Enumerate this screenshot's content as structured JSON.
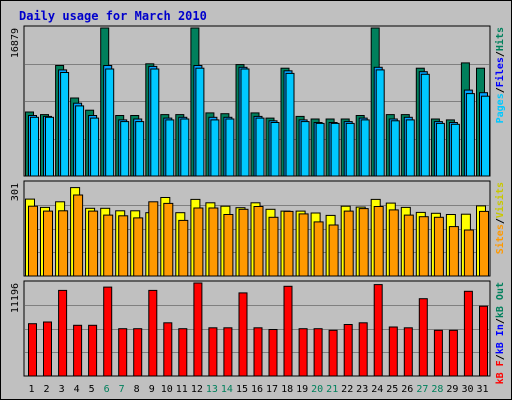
{
  "chart_data": [
    {
      "type": "bar",
      "title": "Daily usage for March 2010",
      "categories": [
        "1",
        "2",
        "3",
        "4",
        "5",
        "6",
        "7",
        "8",
        "9",
        "10",
        "11",
        "12",
        "13",
        "14",
        "15",
        "16",
        "17",
        "18",
        "19",
        "20",
        "21",
        "22",
        "23",
        "24",
        "25",
        "26",
        "27",
        "28",
        "29",
        "30",
        "31"
      ],
      "weekend_days": [
        6,
        7,
        13,
        14,
        20,
        21,
        27,
        28
      ],
      "ymax_label": "16879",
      "ylim": [
        0,
        16879
      ],
      "series": [
        {
          "name": "Hits",
          "color": "#00805c",
          "values": [
            7300,
            7000,
            12600,
            8900,
            7500,
            16879,
            6900,
            6900,
            12800,
            7000,
            7000,
            16879,
            7200,
            7100,
            12700,
            7200,
            6600,
            12300,
            6800,
            6500,
            6500,
            6500,
            6900,
            16879,
            7000,
            7000,
            12300,
            6500,
            6400,
            12900,
            12300
          ]
        },
        {
          "name": "Files",
          "color": "#00a2ff",
          "values": [
            6900,
            6800,
            12100,
            8300,
            6900,
            12600,
            6400,
            6500,
            12500,
            6600,
            6700,
            12600,
            6700,
            6700,
            12400,
            6800,
            6300,
            12000,
            6400,
            6100,
            6100,
            6200,
            6600,
            12400,
            6500,
            6700,
            11900,
            6200,
            6100,
            9800,
            9500
          ]
        },
        {
          "name": "Pages",
          "color": "#00c8ff",
          "values": [
            6700,
            6700,
            11800,
            8000,
            6600,
            12200,
            6200,
            6200,
            12200,
            6400,
            6500,
            12300,
            6400,
            6500,
            12200,
            6600,
            6100,
            11700,
            6200,
            6000,
            6000,
            6000,
            6400,
            12100,
            6300,
            6400,
            11600,
            6000,
            5900,
            9400,
            9100
          ]
        }
      ]
    },
    {
      "type": "bar",
      "ymax_label": "301",
      "ylim": [
        0,
        301
      ],
      "series": [
        {
          "name": "Visits",
          "color": "#ffff00",
          "values": [
            249,
            222,
            240,
            286,
            219,
            219,
            211,
            211,
            205,
            254,
            205,
            248,
            237,
            226,
            221,
            237,
            216,
            210,
            210,
            204,
            196,
            226,
            223,
            248,
            236,
            222,
            206,
            203,
            199,
            200,
            227
          ]
        },
        {
          "name": "Sites",
          "color": "#ff9900",
          "values": [
            226,
            210,
            211,
            262,
            210,
            197,
            195,
            188,
            240,
            235,
            180,
            220,
            220,
            199,
            216,
            225,
            190,
            209,
            201,
            175,
            165,
            210,
            218,
            225,
            214,
            197,
            192,
            190,
            160,
            149,
            209
          ]
        }
      ]
    },
    {
      "type": "bar",
      "ymax_label": "11196",
      "ylim": [
        0,
        11196
      ],
      "series": [
        {
          "name": "kB F",
          "color": "#ff0000",
          "values": [
            6300,
            6500,
            10300,
            6100,
            6100,
            10700,
            5700,
            5700,
            10300,
            6400,
            5700,
            11196,
            5800,
            5800,
            10000,
            5800,
            5600,
            10800,
            5700,
            5700,
            5500,
            6200,
            6400,
            11000,
            5900,
            5800,
            9300,
            5500,
            5500,
            10200,
            8400
          ]
        },
        {
          "name": "kB In",
          "color": "#0000ff",
          "values": []
        },
        {
          "name": "kB Out",
          "color": "#00805c",
          "values": []
        }
      ]
    }
  ],
  "legends": {
    "top": [
      {
        "text": "Pages",
        "color": "#00c8ff"
      },
      {
        "text": "/",
        "color": "#000000"
      },
      {
        "text": "Files",
        "color": "#0000ff"
      },
      {
        "text": "/",
        "color": "#000000"
      },
      {
        "text": "Hits",
        "color": "#00805c"
      }
    ],
    "middle": [
      {
        "text": "Sites",
        "color": "#ff9900"
      },
      {
        "text": "/",
        "color": "#000000"
      },
      {
        "text": "Visits",
        "color": "#c8c800"
      }
    ],
    "bottom": [
      {
        "text": "kB F",
        "color": "#ff0000"
      },
      {
        "text": "/",
        "color": "#000000"
      },
      {
        "text": "kB In",
        "color": "#0000ff"
      },
      {
        "text": "/",
        "color": "#000000"
      },
      {
        "text": "kB Out",
        "color": "#00805c"
      }
    ]
  },
  "colors": {
    "panel_bg": "#c0c0c0",
    "weekday_label": "#000000",
    "weekend_label": "#00805c",
    "title": "#0000cc"
  }
}
